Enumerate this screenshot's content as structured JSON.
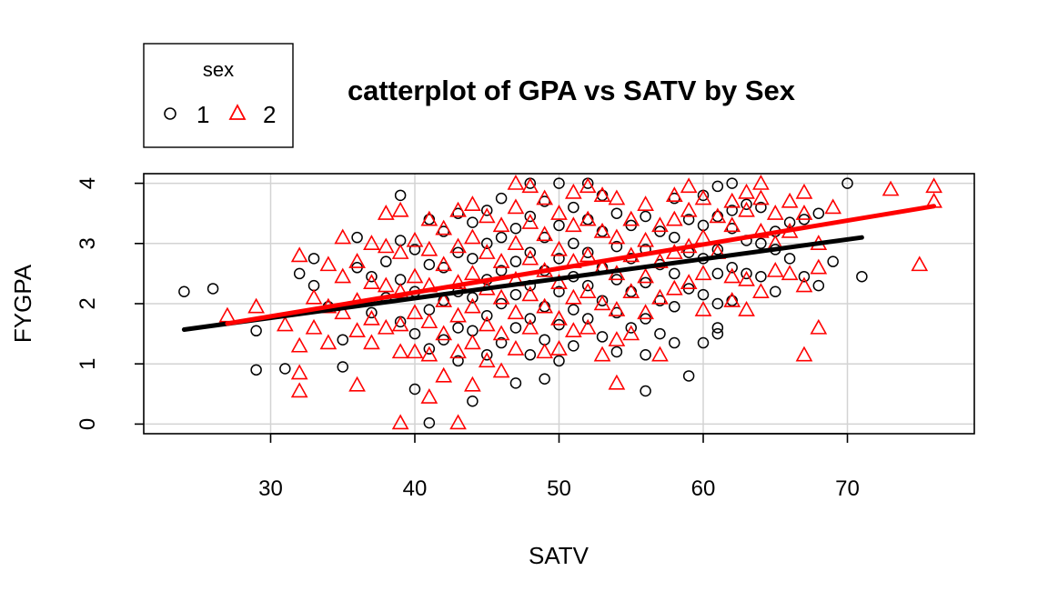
{
  "chart_data": {
    "type": "scatter",
    "title": "catterplot of GPA vs SATV by Sex",
    "xlabel": "SATV",
    "ylabel": "FYGPA",
    "xlim": [
      21.2,
      78.8
    ],
    "ylim": [
      -0.16,
      4.16
    ],
    "x_ticks": [
      30,
      40,
      50,
      60,
      70
    ],
    "y_ticks": [
      0,
      1,
      2,
      3,
      4
    ],
    "grid": true,
    "legend": {
      "title": "sex",
      "position": "top-left, outside plot area",
      "entries": [
        "1",
        "2"
      ]
    },
    "series": [
      {
        "name": "1",
        "color": "#000000",
        "marker": "circle",
        "points": [
          [
            24,
            2.2
          ],
          [
            26,
            2.25
          ],
          [
            29,
            1.55
          ],
          [
            29,
            0.9
          ],
          [
            31,
            0.92
          ],
          [
            32,
            2.5
          ],
          [
            33,
            2.75
          ],
          [
            33,
            2.3
          ],
          [
            34,
            1.95
          ],
          [
            35,
            1.4
          ],
          [
            35,
            0.95
          ],
          [
            36,
            3.1
          ],
          [
            36,
            2.6
          ],
          [
            37,
            2.45
          ],
          [
            37,
            1.85
          ],
          [
            38,
            2.7
          ],
          [
            38,
            2.1
          ],
          [
            39,
            3.8
          ],
          [
            39,
            3.05
          ],
          [
            39,
            2.4
          ],
          [
            39,
            1.7
          ],
          [
            40,
            2.9
          ],
          [
            40,
            2.2
          ],
          [
            40,
            1.5
          ],
          [
            40,
            0.58
          ],
          [
            41,
            3.4
          ],
          [
            41,
            2.65
          ],
          [
            41,
            1.9
          ],
          [
            41,
            1.25
          ],
          [
            41,
            0.02
          ],
          [
            42,
            3.2
          ],
          [
            42,
            2.6
          ],
          [
            42,
            2.05
          ],
          [
            42,
            1.4
          ],
          [
            43,
            3.5
          ],
          [
            43,
            2.85
          ],
          [
            43,
            2.2
          ],
          [
            43,
            1.6
          ],
          [
            43,
            1.05
          ],
          [
            44,
            3.35
          ],
          [
            44,
            2.75
          ],
          [
            44,
            2.1
          ],
          [
            44,
            1.55
          ],
          [
            44,
            0.38
          ],
          [
            45,
            3.55
          ],
          [
            45,
            3.0
          ],
          [
            45,
            2.4
          ],
          [
            45,
            1.8
          ],
          [
            45,
            1.15
          ],
          [
            46,
            3.75
          ],
          [
            46,
            3.1
          ],
          [
            46,
            2.55
          ],
          [
            46,
            2.0
          ],
          [
            46,
            1.35
          ],
          [
            47,
            3.25
          ],
          [
            47,
            2.7
          ],
          [
            47,
            2.15
          ],
          [
            47,
            1.6
          ],
          [
            47,
            0.68
          ],
          [
            48,
            4.0
          ],
          [
            48,
            3.45
          ],
          [
            48,
            2.85
          ],
          [
            48,
            2.3
          ],
          [
            48,
            1.75
          ],
          [
            48,
            1.15
          ],
          [
            49,
            3.7
          ],
          [
            49,
            3.1
          ],
          [
            49,
            2.55
          ],
          [
            49,
            1.95
          ],
          [
            49,
            1.4
          ],
          [
            49,
            0.75
          ],
          [
            50,
            4.0
          ],
          [
            50,
            3.3
          ],
          [
            50,
            2.75
          ],
          [
            50,
            2.2
          ],
          [
            50,
            1.65
          ],
          [
            50,
            1.05
          ],
          [
            51,
            3.6
          ],
          [
            51,
            3.0
          ],
          [
            51,
            2.45
          ],
          [
            51,
            1.9
          ],
          [
            51,
            1.3
          ],
          [
            52,
            4.0
          ],
          [
            52,
            3.4
          ],
          [
            52,
            2.85
          ],
          [
            52,
            2.3
          ],
          [
            52,
            1.75
          ],
          [
            53,
            3.8
          ],
          [
            53,
            3.2
          ],
          [
            53,
            2.6
          ],
          [
            53,
            2.05
          ],
          [
            53,
            1.45
          ],
          [
            54,
            3.5
          ],
          [
            54,
            2.95
          ],
          [
            54,
            2.4
          ],
          [
            54,
            1.85
          ],
          [
            54,
            1.2
          ],
          [
            55,
            3.3
          ],
          [
            55,
            2.75
          ],
          [
            55,
            2.2
          ],
          [
            55,
            1.6
          ],
          [
            56,
            3.45
          ],
          [
            56,
            2.9
          ],
          [
            56,
            2.35
          ],
          [
            56,
            1.75
          ],
          [
            56,
            1.15
          ],
          [
            56,
            0.55
          ],
          [
            57,
            3.2
          ],
          [
            57,
            2.65
          ],
          [
            57,
            2.05
          ],
          [
            57,
            1.5
          ],
          [
            58,
            3.75
          ],
          [
            58,
            3.1
          ],
          [
            58,
            2.5
          ],
          [
            58,
            1.95
          ],
          [
            58,
            1.35
          ],
          [
            59,
            3.4
          ],
          [
            59,
            2.85
          ],
          [
            59,
            2.25
          ],
          [
            59,
            0.8
          ],
          [
            60,
            3.8
          ],
          [
            60,
            3.3
          ],
          [
            60,
            2.75
          ],
          [
            60,
            2.15
          ],
          [
            60,
            1.35
          ],
          [
            61,
            3.95
          ],
          [
            61,
            3.45
          ],
          [
            61,
            2.9
          ],
          [
            61,
            2.5
          ],
          [
            61,
            2.0
          ],
          [
            61,
            1.6
          ],
          [
            61,
            1.5
          ],
          [
            62,
            4.0
          ],
          [
            62,
            3.55
          ],
          [
            62,
            3.25
          ],
          [
            62,
            2.6
          ],
          [
            62,
            2.05
          ],
          [
            63,
            3.65
          ],
          [
            63,
            3.05
          ],
          [
            63,
            2.5
          ],
          [
            64,
            3.6
          ],
          [
            64,
            3.0
          ],
          [
            64,
            2.45
          ],
          [
            65,
            3.2
          ],
          [
            65,
            2.9
          ],
          [
            65,
            2.2
          ],
          [
            66,
            3.35
          ],
          [
            66,
            2.75
          ],
          [
            67,
            3.4
          ],
          [
            67,
            2.45
          ],
          [
            68,
            3.5
          ],
          [
            68,
            2.3
          ],
          [
            69,
            2.7
          ],
          [
            70,
            4.0
          ],
          [
            71,
            2.45
          ]
        ]
      },
      {
        "name": "2",
        "color": "#ff0000",
        "marker": "triangle",
        "points": [
          [
            27,
            1.8
          ],
          [
            29,
            1.95
          ],
          [
            31,
            1.65
          ],
          [
            32,
            2.8
          ],
          [
            32,
            1.3
          ],
          [
            32,
            0.85
          ],
          [
            32,
            0.55
          ],
          [
            33,
            2.1
          ],
          [
            33,
            1.6
          ],
          [
            34,
            2.65
          ],
          [
            34,
            1.95
          ],
          [
            34,
            1.35
          ],
          [
            35,
            3.1
          ],
          [
            35,
            2.45
          ],
          [
            35,
            1.85
          ],
          [
            36,
            2.7
          ],
          [
            36,
            2.05
          ],
          [
            36,
            1.55
          ],
          [
            36,
            0.65
          ],
          [
            37,
            3.0
          ],
          [
            37,
            2.35
          ],
          [
            37,
            1.75
          ],
          [
            37,
            1.35
          ],
          [
            38,
            3.5
          ],
          [
            38,
            2.95
          ],
          [
            38,
            2.3
          ],
          [
            38,
            1.6
          ],
          [
            39,
            3.55
          ],
          [
            39,
            2.85
          ],
          [
            39,
            2.2
          ],
          [
            39,
            1.65
          ],
          [
            39,
            1.2
          ],
          [
            39,
            0.02
          ],
          [
            40,
            3.05
          ],
          [
            40,
            2.45
          ],
          [
            40,
            1.85
          ],
          [
            40,
            1.2
          ],
          [
            41,
            3.4
          ],
          [
            41,
            2.9
          ],
          [
            41,
            2.3
          ],
          [
            41,
            1.7
          ],
          [
            41,
            1.15
          ],
          [
            41,
            0.45
          ],
          [
            42,
            3.25
          ],
          [
            42,
            2.65
          ],
          [
            42,
            2.05
          ],
          [
            42,
            1.5
          ],
          [
            42,
            0.8
          ],
          [
            43,
            3.55
          ],
          [
            43,
            2.95
          ],
          [
            43,
            2.35
          ],
          [
            43,
            1.8
          ],
          [
            43,
            1.2
          ],
          [
            43,
            0.02
          ],
          [
            44,
            3.65
          ],
          [
            44,
            3.1
          ],
          [
            44,
            2.5
          ],
          [
            44,
            1.95
          ],
          [
            44,
            1.35
          ],
          [
            44,
            0.65
          ],
          [
            45,
            3.45
          ],
          [
            45,
            2.85
          ],
          [
            45,
            2.25
          ],
          [
            45,
            1.65
          ],
          [
            45,
            1.05
          ],
          [
            46,
            3.3
          ],
          [
            46,
            2.7
          ],
          [
            46,
            2.1
          ],
          [
            46,
            1.5
          ],
          [
            46,
            0.88
          ],
          [
            47,
            4.0
          ],
          [
            47,
            3.6
          ],
          [
            47,
            3.0
          ],
          [
            47,
            2.4
          ],
          [
            47,
            1.85
          ],
          [
            47,
            1.25
          ],
          [
            48,
            3.95
          ],
          [
            48,
            3.35
          ],
          [
            48,
            2.75
          ],
          [
            48,
            2.15
          ],
          [
            48,
            1.6
          ],
          [
            49,
            3.75
          ],
          [
            49,
            3.15
          ],
          [
            49,
            2.55
          ],
          [
            49,
            1.95
          ],
          [
            49,
            1.2
          ],
          [
            50,
            3.5
          ],
          [
            50,
            2.9
          ],
          [
            50,
            2.35
          ],
          [
            50,
            1.75
          ],
          [
            50,
            1.25
          ],
          [
            51,
            3.85
          ],
          [
            51,
            3.3
          ],
          [
            51,
            2.7
          ],
          [
            51,
            2.1
          ],
          [
            51,
            1.55
          ],
          [
            52,
            3.95
          ],
          [
            52,
            3.4
          ],
          [
            52,
            2.8
          ],
          [
            52,
            2.2
          ],
          [
            52,
            1.6
          ],
          [
            53,
            3.8
          ],
          [
            53,
            3.2
          ],
          [
            53,
            2.6
          ],
          [
            53,
            2.0
          ],
          [
            53,
            1.15
          ],
          [
            54,
            3.75
          ],
          [
            54,
            3.1
          ],
          [
            54,
            2.5
          ],
          [
            54,
            1.9
          ],
          [
            54,
            1.4
          ],
          [
            54,
            0.68
          ],
          [
            55,
            3.4
          ],
          [
            55,
            2.8
          ],
          [
            55,
            2.2
          ],
          [
            55,
            1.5
          ],
          [
            56,
            3.65
          ],
          [
            56,
            3.05
          ],
          [
            56,
            2.45
          ],
          [
            56,
            1.85
          ],
          [
            57,
            3.3
          ],
          [
            57,
            2.7
          ],
          [
            57,
            2.1
          ],
          [
            57,
            1.15
          ],
          [
            58,
            3.8
          ],
          [
            58,
            3.4
          ],
          [
            58,
            2.85
          ],
          [
            58,
            2.25
          ],
          [
            59,
            3.95
          ],
          [
            59,
            3.55
          ],
          [
            59,
            2.95
          ],
          [
            59,
            2.35
          ],
          [
            60,
            3.75
          ],
          [
            60,
            3.1
          ],
          [
            60,
            2.5
          ],
          [
            60,
            1.9
          ],
          [
            61,
            3.45
          ],
          [
            61,
            2.85
          ],
          [
            62,
            3.7
          ],
          [
            62,
            3.3
          ],
          [
            62,
            2.45
          ],
          [
            62,
            2.05
          ],
          [
            63,
            3.85
          ],
          [
            63,
            3.55
          ],
          [
            63,
            2.4
          ],
          [
            63,
            1.9
          ],
          [
            64,
            4.0
          ],
          [
            64,
            3.75
          ],
          [
            64,
            3.2
          ],
          [
            64,
            2.2
          ],
          [
            65,
            3.5
          ],
          [
            65,
            3.0
          ],
          [
            65,
            2.55
          ],
          [
            66,
            3.7
          ],
          [
            66,
            3.2
          ],
          [
            66,
            2.5
          ],
          [
            67,
            3.85
          ],
          [
            67,
            3.5
          ],
          [
            67,
            2.3
          ],
          [
            67,
            1.15
          ],
          [
            68,
            3.0
          ],
          [
            68,
            2.6
          ],
          [
            68,
            1.6
          ],
          [
            69,
            3.6
          ],
          [
            73,
            3.9
          ],
          [
            75,
            2.65
          ],
          [
            76,
            3.95
          ],
          [
            76,
            3.7
          ]
        ]
      }
    ],
    "trend_lines": [
      {
        "series": "1",
        "color": "#000000",
        "points": [
          [
            24,
            1.57
          ],
          [
            71,
            3.1
          ]
        ]
      },
      {
        "series": "2",
        "color": "#ff0000",
        "points": [
          [
            27,
            1.67
          ],
          [
            76,
            3.62
          ]
        ]
      }
    ]
  }
}
